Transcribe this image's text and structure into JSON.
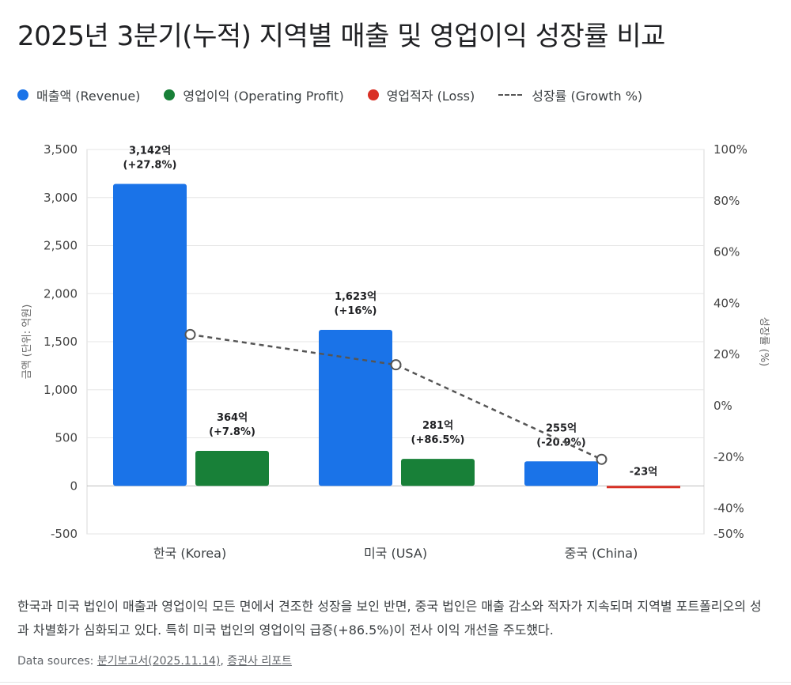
{
  "title": "2025년 3분기(누적) 지역별 매출 및 영업이익 성장률 비교",
  "legend": {
    "revenue": "매출액 (Revenue)",
    "profit": "영업이익 (Operating Profit)",
    "loss": "영업적자 (Loss)",
    "growth": "성장률 (Growth %)"
  },
  "colors": {
    "revenue": "#1a73e8",
    "profit": "#188038",
    "loss": "#d93025",
    "growth": "#555555"
  },
  "chart_data": {
    "type": "bar",
    "categories": [
      "한국 (Korea)",
      "미국 (USA)",
      "중국 (China)"
    ],
    "series": [
      {
        "name": "매출액 (Revenue)",
        "values": [
          3142,
          1623,
          255
        ],
        "labels": [
          "3,142억\n(+27.8%)",
          "1,623억\n(+16%)",
          "255억\n(-20.9%)"
        ]
      },
      {
        "name": "영업이익 (Operating Profit)",
        "values": [
          364,
          281,
          -23
        ],
        "labels": [
          "364억\n(+7.8%)",
          "281억\n(+86.5%)",
          "-23억"
        ]
      }
    ],
    "growth": {
      "name": "성장률 (Growth %)",
      "values": [
        27.8,
        16,
        -20.9
      ]
    },
    "ylabel": "금액 (단위: 억원)",
    "y2label": "성장률 (%)",
    "ylim": [
      -500,
      3500
    ],
    "y2lim": [
      -50,
      100
    ],
    "yticks": [
      "3,500",
      "3,000",
      "2,500",
      "2,000",
      "1,500",
      "1,000",
      "500",
      "0",
      "-500"
    ],
    "y2ticks": [
      "100%",
      "80%",
      "60%",
      "40%",
      "20%",
      "0%",
      "-20%",
      "-40%",
      "-50%"
    ]
  },
  "note": "한국과 미국 법인이 매출과 영업이익 모든 면에서 견조한 성장을 보인 반면, 중국 법인은 매출 감소와 적자가 지속되며 지역별 포트폴리오의 성과 차별화가 심화되고 있다. 특히 미국 법인의 영업이익 급증(+86.5%)이 전사 이익 개선을 주도했다.",
  "sources": {
    "prefix": "Data sources: ",
    "link1": "분기보고서(2025.11.14)",
    "separator": ", ",
    "link2": "증권사 리포트"
  }
}
